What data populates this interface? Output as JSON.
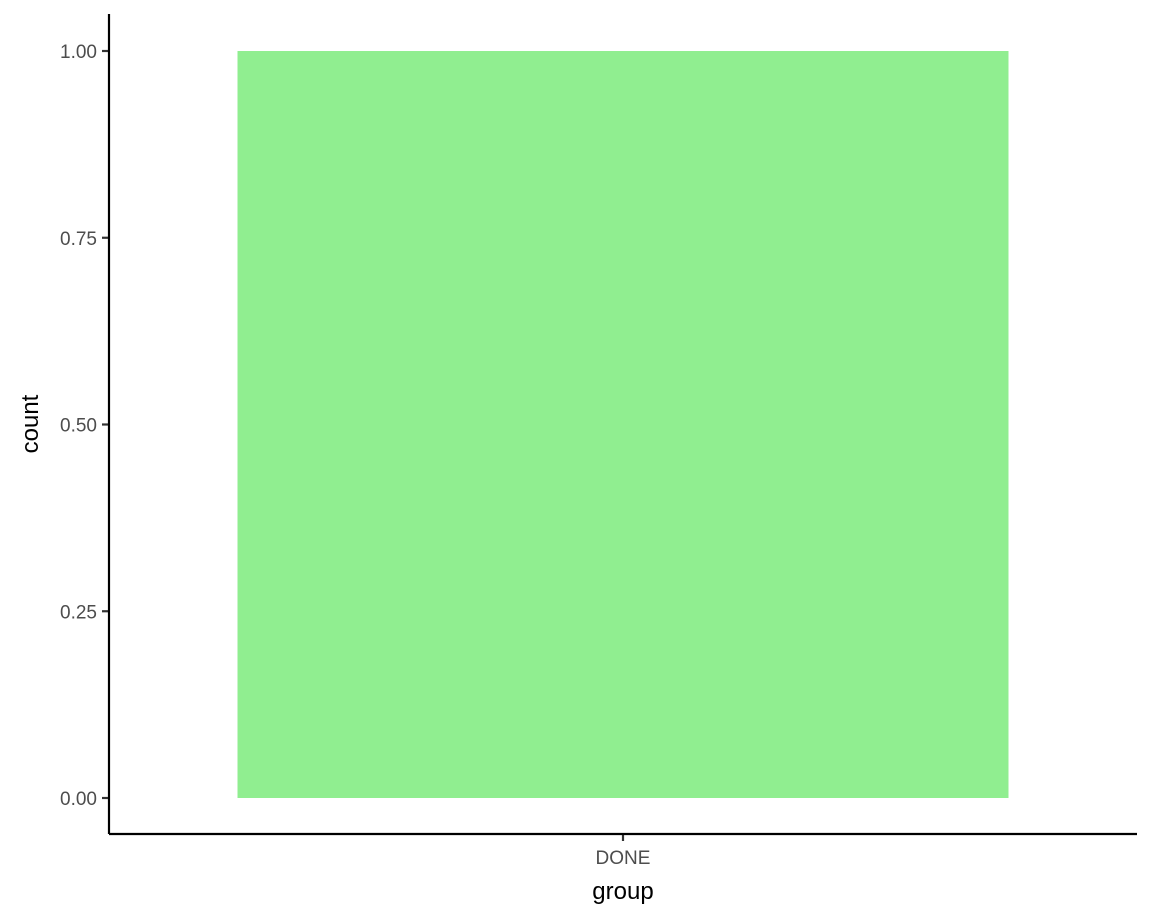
{
  "chart_data": {
    "type": "bar",
    "categories": [
      "DONE"
    ],
    "values": [
      1.0
    ],
    "xlabel": "group",
    "ylabel": "count",
    "ylim": [
      0,
      1.05
    ],
    "yticks": [
      0.0,
      0.25,
      0.5,
      0.75,
      1.0
    ],
    "ytick_labels": [
      "0.00",
      "0.25",
      "0.50",
      "0.75",
      "1.00"
    ],
    "grid": false,
    "bar_color": "#90ee90",
    "axis_color": "#000000",
    "tick_label_color": "#4d4d4d"
  }
}
